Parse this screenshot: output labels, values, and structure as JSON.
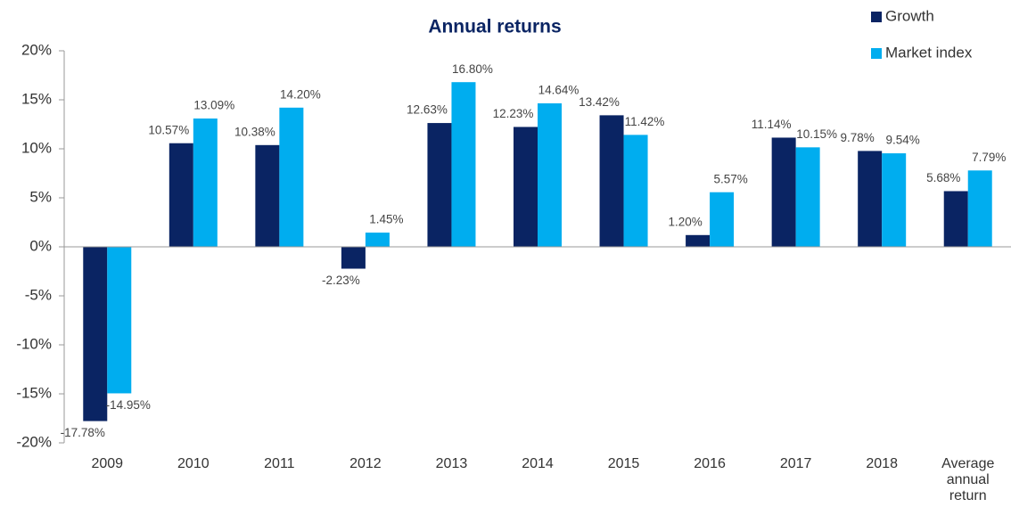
{
  "chart_data": {
    "type": "bar",
    "title": "Annual returns",
    "categories": [
      "2009",
      "2010",
      "2011",
      "2012",
      "2013",
      "2014",
      "2015",
      "2016",
      "2017",
      "2018",
      "Average annual return"
    ],
    "series": [
      {
        "name": "Growth",
        "color": "#0a2463",
        "values": [
          -17.78,
          10.57,
          10.38,
          -2.23,
          12.63,
          12.23,
          13.42,
          1.2,
          11.14,
          9.78,
          5.68
        ],
        "value_labels": [
          "-17.78%",
          "10.57%",
          "10.38%",
          "-2.23%",
          "12.63%",
          "12.23%",
          "13.42%",
          "1.20%",
          "11.14%",
          "9.78%",
          "5.68%"
        ]
      },
      {
        "name": "Market index",
        "color": "#00adef",
        "values": [
          -14.95,
          13.09,
          14.2,
          1.45,
          16.8,
          14.64,
          11.42,
          5.57,
          10.15,
          9.54,
          7.79
        ],
        "value_labels": [
          "-14.95%",
          "13.09%",
          "14.20%",
          "1.45%",
          "16.80%",
          "14.64%",
          "11.42%",
          "5.57%",
          "10.15%",
          "9.54%",
          "7.79%"
        ]
      }
    ],
    "ylim": [
      -20,
      20
    ],
    "yticks": [
      {
        "value": -20,
        "label": "-20%"
      },
      {
        "value": -15,
        "label": "-15%"
      },
      {
        "value": -10,
        "label": "-10%"
      },
      {
        "value": -5,
        "label": "-5%"
      },
      {
        "value": 0,
        "label": "0%"
      },
      {
        "value": 5,
        "label": "5%"
      },
      {
        "value": 10,
        "label": "10%"
      },
      {
        "value": 15,
        "label": "15%"
      },
      {
        "value": 20,
        "label": "20%"
      }
    ],
    "legend": "top-right"
  }
}
